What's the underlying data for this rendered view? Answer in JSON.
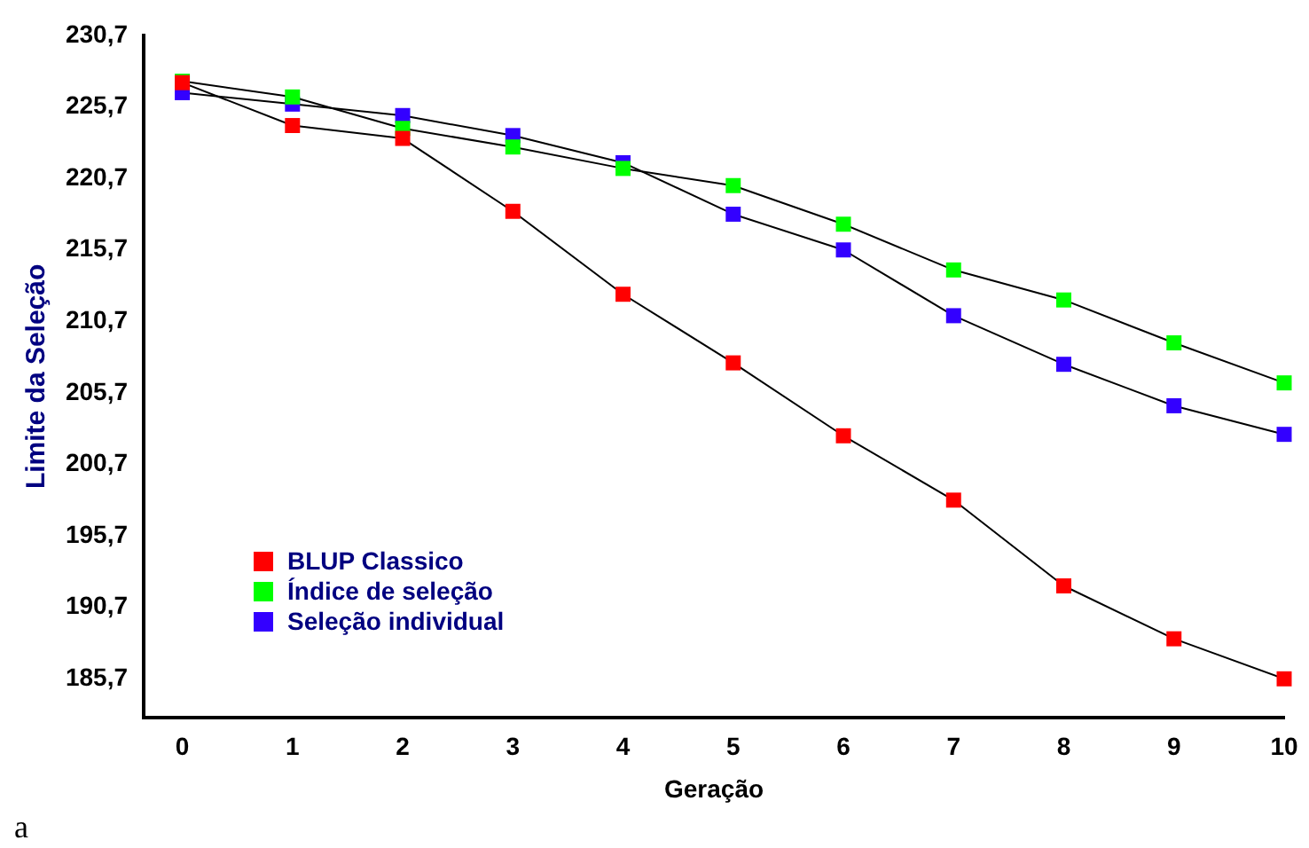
{
  "chart_data": {
    "type": "line",
    "xlabel": "Geração",
    "ylabel": "Limite da Seleção",
    "x": [
      0,
      1,
      2,
      3,
      4,
      5,
      6,
      7,
      8,
      9,
      10
    ],
    "series": [
      {
        "name": "BLUP Classico",
        "color": "#ff0000",
        "values": [
          227.4,
          224.4,
          223.5,
          218.4,
          212.6,
          207.8,
          202.7,
          198.2,
          192.2,
          188.5,
          185.7
        ]
      },
      {
        "name": "Índice de seleção",
        "color": "#00ff00",
        "values": [
          227.5,
          226.4,
          224.2,
          222.9,
          221.4,
          220.2,
          217.5,
          214.3,
          212.2,
          209.2,
          206.4
        ]
      },
      {
        "name": "Seleção individual",
        "color": "#3300ff",
        "values": [
          226.7,
          225.9,
          225.1,
          223.7,
          221.8,
          218.2,
          215.7,
          211.1,
          207.7,
          204.8,
          202.8
        ]
      }
    ],
    "xlim": [
      -0.35,
      10
    ],
    "xticks": [
      0,
      1,
      2,
      3,
      4,
      5,
      6,
      7,
      8,
      9,
      10
    ],
    "ylim": [
      183,
      230.7
    ],
    "yticks": [
      {
        "value": 185.7,
        "label": "185,7"
      },
      {
        "value": 190.7,
        "label": "190,7"
      },
      {
        "value": 195.7,
        "label": "195,7"
      },
      {
        "value": 200.7,
        "label": "200,7"
      },
      {
        "value": 205.7,
        "label": "205,7"
      },
      {
        "value": 210.7,
        "label": "210,7"
      },
      {
        "value": 215.7,
        "label": "215,7"
      },
      {
        "value": 220.7,
        "label": "220,7"
      },
      {
        "value": 225.7,
        "label": "225,7"
      },
      {
        "value": 230.7,
        "label": "230,7"
      }
    ],
    "grid": false,
    "legend": "left",
    "marker": "square",
    "line_style": "solid",
    "annotations": [
      "a"
    ]
  }
}
